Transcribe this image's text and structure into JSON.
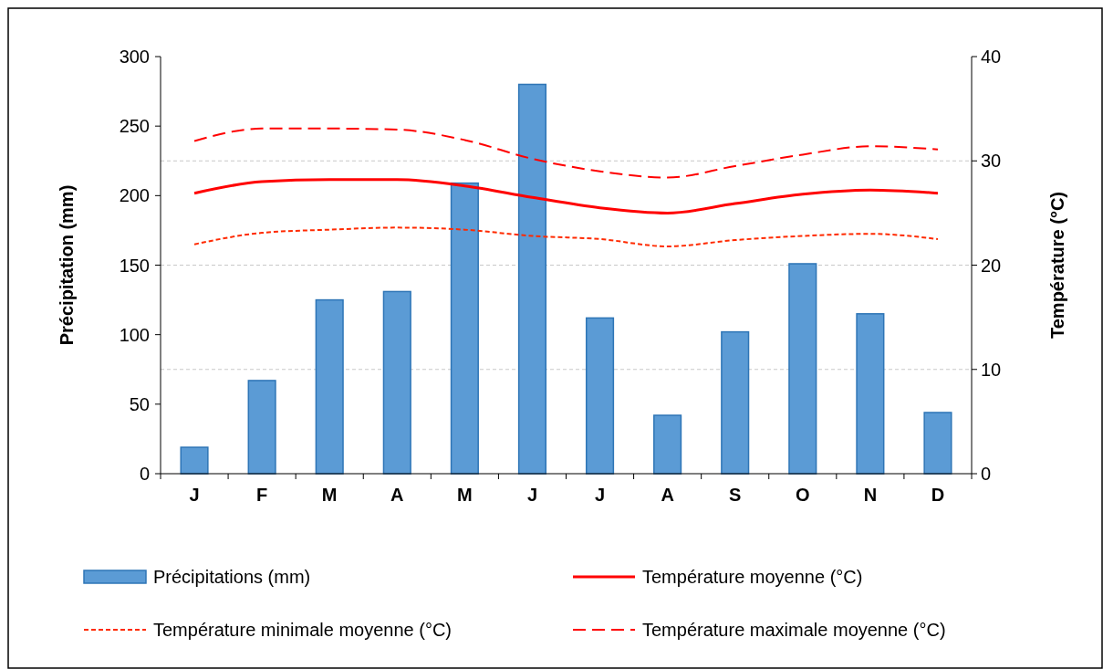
{
  "chart_data": {
    "type": "bar",
    "ylabel": "Précipitation (mm)",
    "y2label": "Température (°C)",
    "categories": [
      "J",
      "F",
      "M",
      "A",
      "M",
      "J",
      "J",
      "A",
      "S",
      "O",
      "N",
      "D"
    ],
    "ylim": [
      0,
      300
    ],
    "yticks": [
      0,
      50,
      100,
      150,
      200,
      250,
      300
    ],
    "y2lim": [
      0,
      40
    ],
    "y2ticks": [
      0,
      10,
      20,
      30,
      40
    ],
    "grid": "y2",
    "legend": "bottom",
    "series": [
      {
        "name": "Précipitations (mm)",
        "color": "#5b9bd5",
        "values": [
          19,
          67,
          125,
          131,
          209,
          280,
          112,
          42,
          102,
          151,
          115,
          44
        ]
      },
      {
        "name": "Température moyenne (°C)",
        "type": "line",
        "axis": "y2",
        "line_style": "solid",
        "color": "#ff0000",
        "values": [
          26.9,
          28.0,
          28.2,
          28.2,
          27.6,
          26.5,
          25.5,
          25.0,
          25.9,
          26.8,
          27.2,
          26.9
        ]
      },
      {
        "name": "Température minimale moyenne (°C)",
        "type": "line",
        "axis": "y2",
        "line_style": "dotted",
        "color": "#ff2a00",
        "values": [
          22.0,
          23.1,
          23.4,
          23.6,
          23.4,
          22.8,
          22.5,
          21.8,
          22.4,
          22.8,
          23.0,
          22.5
        ]
      },
      {
        "name": "Température maximale moyenne (°C)",
        "type": "line",
        "axis": "y2",
        "line_style": "dashed",
        "color": "#ff0000",
        "values": [
          31.9,
          33.1,
          33.1,
          33.0,
          32.0,
          30.2,
          29.0,
          28.4,
          29.5,
          30.6,
          31.4,
          31.1
        ]
      }
    ]
  }
}
